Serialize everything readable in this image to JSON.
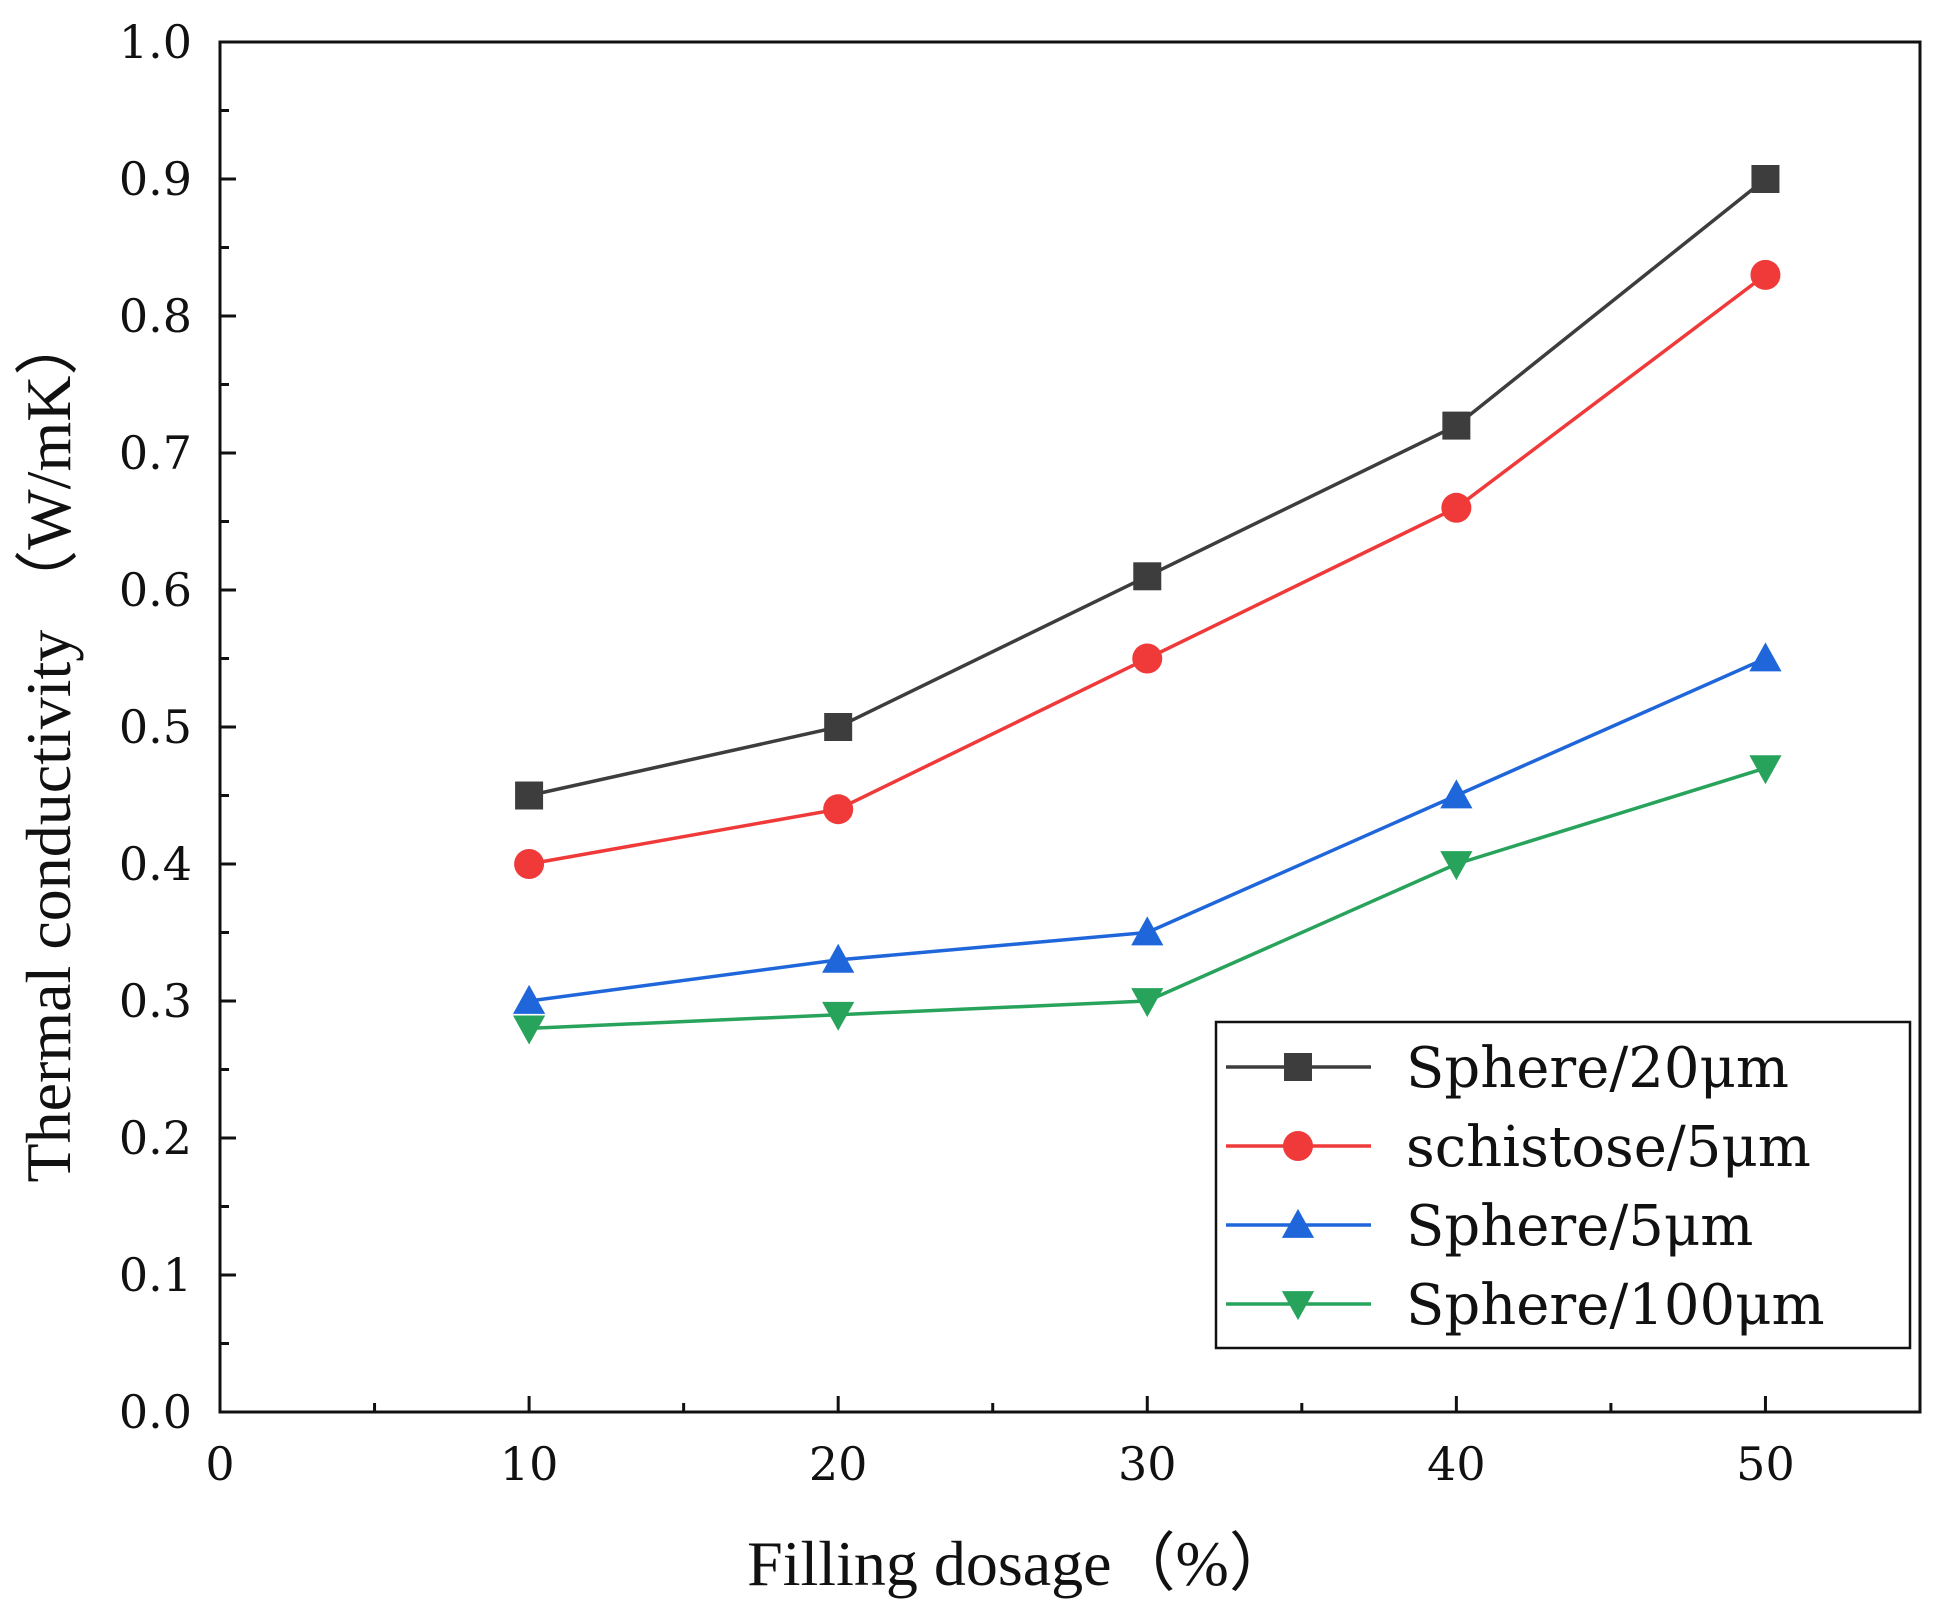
{
  "chart_data": {
    "type": "line",
    "title": "",
    "xlabel": "Filling dosage（%）",
    "ylabel": "Thermal conductivity （W/mK）",
    "xlim": [
      0,
      55
    ],
    "ylim": [
      0,
      1.0
    ],
    "xticks": [
      0,
      10,
      20,
      30,
      40,
      50
    ],
    "xtick_labels": [
      "0",
      "10",
      "20",
      "30",
      "40",
      "50"
    ],
    "yticks": [
      0.0,
      0.1,
      0.2,
      0.3,
      0.4,
      0.5,
      0.6,
      0.7,
      0.8,
      0.9,
      1.0
    ],
    "ytick_labels": [
      "0.0",
      "0.1",
      "0.2",
      "0.3",
      "0.4",
      "0.5",
      "0.6",
      "0.7",
      "0.8",
      "0.9",
      "1.0"
    ],
    "grid": false,
    "legend_position": "bottom-right",
    "x": [
      10,
      20,
      30,
      40,
      50
    ],
    "series": [
      {
        "name": "Sphere/20μm",
        "values": [
          0.45,
          0.5,
          0.61,
          0.72,
          0.9
        ],
        "color": "#3d3d3d",
        "marker": "square"
      },
      {
        "name": "schistose/5μm",
        "values": [
          0.4,
          0.44,
          0.55,
          0.66,
          0.83
        ],
        "color": "#f03a3a",
        "marker": "circle"
      },
      {
        "name": "Sphere/5μm",
        "values": [
          0.3,
          0.33,
          0.35,
          0.45,
          0.55
        ],
        "color": "#1f66db",
        "marker": "triangle-up"
      },
      {
        "name": "Sphere/100μm",
        "values": [
          0.28,
          0.29,
          0.3,
          0.4,
          0.47
        ],
        "color": "#27a35b",
        "marker": "triangle-down"
      }
    ]
  }
}
